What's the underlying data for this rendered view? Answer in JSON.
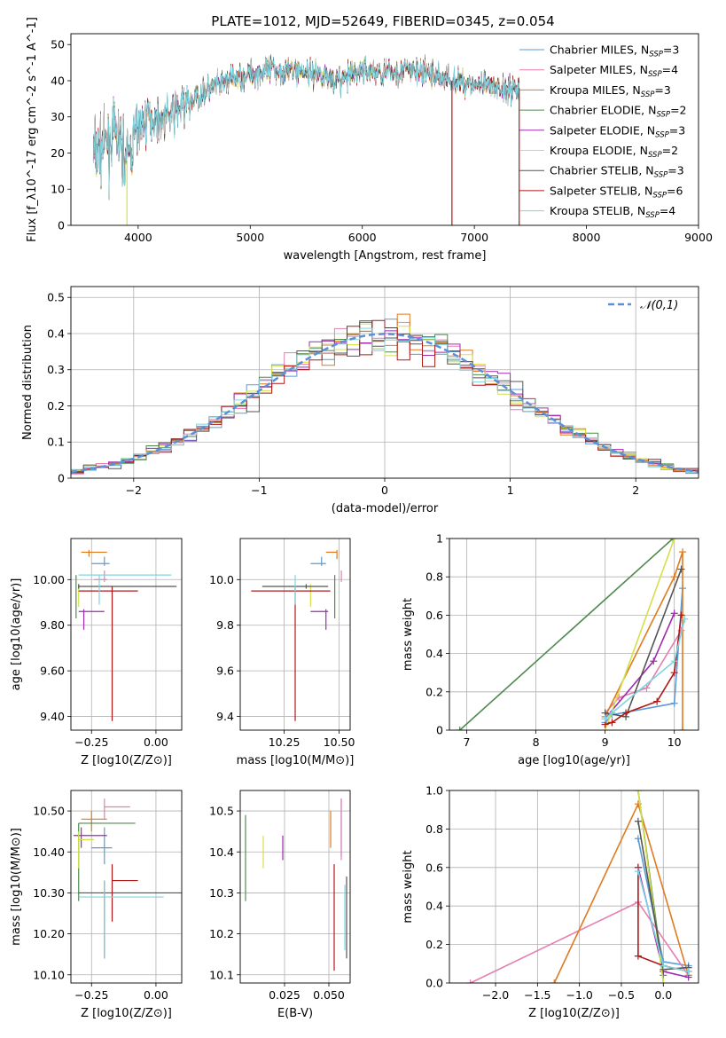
{
  "figure": {
    "title": "PLATE=1012, MJD=52649, FIBERID=0345, z=0.054"
  },
  "series_colors": [
    "#5b9bd5",
    "#e57fb0",
    "#e07a1f",
    "#4f8a4f",
    "#a02ab0",
    "#d4e04a",
    "#555555",
    "#b01818",
    "#7fd4e0"
  ],
  "chart_data": [
    {
      "id": "spectrum",
      "type": "line",
      "xlabel": "wavelength [Angstrom, rest frame]",
      "ylabel": "Flux [f_λ10^-17 erg cm^-2 s^-1 A^-1]",
      "xlim": [
        3400,
        9000
      ],
      "ylim": [
        0,
        53
      ],
      "xticks": [
        4000,
        5000,
        6000,
        7000,
        8000,
        9000
      ],
      "yticks": [
        0,
        10,
        20,
        30,
        40,
        50
      ],
      "legend_position": "right",
      "legend": [
        {
          "model": "Chabrier MILES",
          "nssp": "3"
        },
        {
          "model": "Salpeter MILES",
          "nssp": "4"
        },
        {
          "model": "Kroupa MILES",
          "nssp": "3"
        },
        {
          "model": "Chabrier ELODIE",
          "nssp": "2"
        },
        {
          "model": "Salpeter ELODIE",
          "nssp": "3"
        },
        {
          "model": "Kroupa ELODIE",
          "nssp": "2"
        },
        {
          "model": "Chabrier STELIB",
          "nssp": "3"
        },
        {
          "model": "Salpeter STELIB",
          "nssp": "6"
        },
        {
          "model": "Kroupa STELIB",
          "nssp": "4"
        }
      ],
      "x": [
        3600,
        3700,
        3800,
        3900,
        4000,
        4100,
        4200,
        4300,
        4400,
        4600,
        4800,
        5000,
        5200,
        5400,
        5600,
        5800,
        6000,
        6200,
        6400,
        6600,
        6800,
        7000,
        7200,
        7400
      ],
      "y": [
        20,
        22,
        25,
        18,
        27,
        30,
        29,
        31,
        33,
        37,
        40,
        42,
        43,
        43,
        42,
        40,
        43,
        42,
        43,
        42,
        40,
        39,
        38,
        38
      ],
      "glitches": [
        {
          "x": 3900,
          "y": 0
        },
        {
          "x": 6800,
          "y": 0
        },
        {
          "x": 7400,
          "y": 0
        }
      ]
    },
    {
      "id": "residuals",
      "type": "histogram",
      "xlabel": "(data-model)/error",
      "ylabel": "Normed distribution",
      "xlim": [
        -2.5,
        2.5
      ],
      "ylim": [
        0,
        0.53
      ],
      "xticks": [
        -2,
        -1,
        0,
        1,
        2
      ],
      "yticks": [
        0,
        0.1,
        0.2,
        0.3,
        0.4,
        0.5
      ],
      "legend_position": "top-right",
      "legend": [
        "𝒩(0,1)"
      ],
      "bin_width": 0.1,
      "reference_curve": "normal(0,1)"
    },
    {
      "id": "age_vs_z",
      "type": "scatter",
      "xlabel": "Z [log10(Z/Z⊙)]",
      "ylabel": "age  [log10(age/yr)]",
      "xlim": [
        -0.33,
        0.1
      ],
      "ylim": [
        9.34,
        10.18
      ],
      "xticks": [
        -0.25,
        0.0
      ],
      "yticks": [
        9.4,
        9.6,
        9.8,
        10.0
      ],
      "points": [
        {
          "x": -0.2,
          "y": 10.07,
          "xerr": [
            0.05,
            0.02
          ],
          "yerr": [
            0.01,
            0.03
          ]
        },
        {
          "x": -0.2,
          "y": 10.0,
          "xerr": [
            0.04,
            0.01
          ],
          "yerr": [
            0.01,
            0.04
          ]
        },
        {
          "x": -0.26,
          "y": 10.12,
          "xerr": [
            0.03,
            0.07
          ],
          "yerr": [
            0.02,
            0.01
          ]
        },
        {
          "x": -0.31,
          "y": 9.97,
          "xerr": [
            0.0,
            0.0
          ],
          "yerr": [
            0.14,
            0.05
          ]
        },
        {
          "x": -0.28,
          "y": 9.86,
          "xerr": [
            0.02,
            0.08
          ],
          "yerr": [
            0.08,
            0.01
          ]
        },
        {
          "x": -0.3,
          "y": 9.95,
          "xerr": [
            0.0,
            0.0
          ],
          "yerr": [
            0.07,
            0.03
          ]
        },
        {
          "x": -0.3,
          "y": 9.97,
          "xerr": [
            0.0,
            0.38
          ],
          "yerr": [
            0.01,
            0.01
          ]
        },
        {
          "x": -0.17,
          "y": 9.95,
          "xerr": [
            0.13,
            0.1
          ],
          "yerr": [
            0.57,
            0.02
          ]
        },
        {
          "x": -0.22,
          "y": 10.02,
          "xerr": [
            0.08,
            0.28
          ],
          "yerr": [
            0.13,
            0.0
          ]
        }
      ]
    },
    {
      "id": "age_vs_mass",
      "type": "scatter",
      "xlabel": "mass [log10(M/M⊙)]",
      "ylabel": "",
      "xlim": [
        10.05,
        10.55
      ],
      "ylim": [
        9.34,
        10.18
      ],
      "xticks": [
        10.25,
        10.5
      ],
      "yticks": [
        9.4,
        9.6,
        9.8,
        10.0
      ],
      "points": [
        {
          "x": 10.42,
          "y": 10.07,
          "xerr": [
            0.05,
            0.02
          ],
          "yerr": [
            0.01,
            0.03
          ]
        },
        {
          "x": 10.51,
          "y": 10.0,
          "xerr": [
            0.0,
            0.0
          ],
          "yerr": [
            0.01,
            0.04
          ]
        },
        {
          "x": 10.49,
          "y": 10.12,
          "xerr": [
            0.05,
            0.0
          ],
          "yerr": [
            0.03,
            0.01
          ]
        },
        {
          "x": 10.48,
          "y": 9.97,
          "xerr": [
            0.0,
            0.0
          ],
          "yerr": [
            0.14,
            0.05
          ]
        },
        {
          "x": 10.44,
          "y": 9.86,
          "xerr": [
            0.07,
            0.01
          ],
          "yerr": [
            0.08,
            0.01
          ]
        },
        {
          "x": 10.37,
          "y": 9.95,
          "xerr": [
            0.0,
            0.0
          ],
          "yerr": [
            0.07,
            0.03
          ]
        },
        {
          "x": 10.35,
          "y": 9.97,
          "xerr": [
            0.2,
            0.1
          ],
          "yerr": [
            0.01,
            0.01
          ]
        },
        {
          "x": 10.3,
          "y": 9.95,
          "xerr": [
            0.2,
            0.16
          ],
          "yerr": [
            0.57,
            0.02
          ]
        },
        {
          "x": 10.3,
          "y": 10.02,
          "xerr": [
            0.0,
            0.0
          ],
          "yerr": [
            0.13,
            0.0
          ]
        }
      ]
    },
    {
      "id": "weight_vs_age",
      "type": "line",
      "xlabel": "age  [log10(age/yr)]",
      "ylabel": "mass weight",
      "xlim": [
        6.75,
        10.35
      ],
      "ylim": [
        0,
        1
      ],
      "xticks": [
        7,
        8,
        9,
        10
      ],
      "yticks": [
        0,
        0.2,
        0.4,
        0.6,
        0.8,
        1.0
      ],
      "series": [
        {
          "x": [
            9.0,
            9.1,
            10.0,
            10.12
          ],
          "y": [
            0.04,
            0.08,
            0.14,
            0.74
          ]
        },
        {
          "x": [
            9.0,
            9.2,
            9.6,
            10.1
          ],
          "y": [
            0.09,
            0.17,
            0.22,
            0.52
          ]
        },
        {
          "x": [
            9.0,
            10.0,
            10.12,
            10.12
          ],
          "y": [
            0.07,
            0.8,
            0.93,
            0.0
          ]
        },
        {
          "x": [
            6.9,
            9.98
          ],
          "y": [
            0.0,
            1.0
          ]
        },
        {
          "x": [
            9.0,
            9.7,
            10.0
          ],
          "y": [
            0.06,
            0.36,
            0.61
          ]
        },
        {
          "x": [
            9.0,
            10.0
          ],
          "y": [
            0.0,
            1.0
          ]
        },
        {
          "x": [
            9.0,
            9.3,
            10.1
          ],
          "y": [
            0.09,
            0.07,
            0.84
          ]
        },
        {
          "x": [
            9.0,
            9.1,
            9.3,
            9.75,
            10.0,
            10.1
          ],
          "y": [
            0.03,
            0.04,
            0.09,
            0.15,
            0.3,
            0.6
          ]
        },
        {
          "x": [
            9.0,
            9.1,
            10.0,
            10.15
          ],
          "y": [
            0.06,
            0.09,
            0.36,
            0.58
          ]
        }
      ]
    },
    {
      "id": "mass_vs_z",
      "type": "scatter",
      "xlabel": "Z [log10(Z/Z⊙)]",
      "ylabel": "mass [log10(M/M⊙)]",
      "xlim": [
        -0.33,
        0.1
      ],
      "ylim": [
        10.08,
        10.55
      ],
      "xticks": [
        -0.25,
        0.0
      ],
      "yticks": [
        10.1,
        10.2,
        10.3,
        10.4,
        10.5
      ],
      "points": [
        {
          "x": -0.2,
          "y": 10.41,
          "xerr": [
            0.05,
            0.03
          ],
          "yerr": [
            0.04,
            0.05
          ]
        },
        {
          "x": -0.2,
          "y": 10.51,
          "xerr": [
            0.0,
            0.1
          ],
          "yerr": [
            0.03,
            0.02
          ]
        },
        {
          "x": -0.25,
          "y": 10.48,
          "xerr": [
            0.04,
            0.06
          ],
          "yerr": [
            0.03,
            0.02
          ]
        },
        {
          "x": -0.3,
          "y": 10.47,
          "xerr": [
            0.0,
            0.22
          ],
          "yerr": [
            0.19,
            0.0
          ]
        },
        {
          "x": -0.29,
          "y": 10.44,
          "xerr": [
            0.03,
            0.1
          ],
          "yerr": [
            0.03,
            0.02
          ]
        },
        {
          "x": -0.3,
          "y": 10.43,
          "xerr": [
            0.0,
            0.06
          ],
          "yerr": [
            0.07,
            0.02
          ]
        },
        {
          "x": -0.2,
          "y": 10.3,
          "xerr": [
            0.1,
            0.3
          ],
          "yerr": [
            0.16,
            0.03
          ]
        },
        {
          "x": -0.17,
          "y": 10.33,
          "xerr": [
            0.0,
            0.1
          ],
          "yerr": [
            0.1,
            0.04
          ]
        },
        {
          "x": -0.2,
          "y": 10.29,
          "xerr": [
            0.1,
            0.23
          ],
          "yerr": [
            0.15,
            0.04
          ]
        }
      ]
    },
    {
      "id": "mass_vs_ebv",
      "type": "scatter",
      "xlabel": "E(B-V)",
      "ylabel": "",
      "xlim": [
        0.0,
        0.062
      ],
      "ylim": [
        10.08,
        10.55
      ],
      "xticks": [
        0.025,
        0.05
      ],
      "yticks": [
        10.1,
        10.2,
        10.3,
        10.4,
        10.5
      ],
      "points": [
        {
          "x": 0.057,
          "y": 10.44,
          "xerr": [
            0.0,
            0.0
          ],
          "yerr": [
            0.05,
            0.09
          ]
        },
        {
          "x": 0.057,
          "y": 10.48,
          "xerr": [
            0.0,
            0.0
          ],
          "yerr": [
            0.1,
            0.05
          ]
        },
        {
          "x": 0.051,
          "y": 10.47,
          "xerr": [
            0.0,
            0.0
          ],
          "yerr": [
            0.06,
            0.03
          ]
        },
        {
          "x": 0.003,
          "y": 10.4,
          "xerr": [
            0.0,
            0.0
          ],
          "yerr": [
            0.12,
            0.09
          ]
        },
        {
          "x": 0.024,
          "y": 10.4,
          "xerr": [
            0.0,
            0.0
          ],
          "yerr": [
            0.02,
            0.04
          ]
        },
        {
          "x": 0.013,
          "y": 10.42,
          "xerr": [
            0.0,
            0.0
          ],
          "yerr": [
            0.06,
            0.02
          ]
        },
        {
          "x": 0.06,
          "y": 10.24,
          "xerr": [
            0.0,
            0.0
          ],
          "yerr": [
            0.1,
            0.1
          ]
        },
        {
          "x": 0.053,
          "y": 10.25,
          "xerr": [
            0.0,
            0.0
          ],
          "yerr": [
            0.14,
            0.12
          ]
        },
        {
          "x": 0.059,
          "y": 10.26,
          "xerr": [
            0.0,
            0.0
          ],
          "yerr": [
            0.1,
            0.06
          ]
        }
      ]
    },
    {
      "id": "weight_vs_z",
      "type": "line",
      "xlabel": "Z [log10(Z/Z⊙)]",
      "ylabel": "mass weight",
      "xlim": [
        -2.55,
        0.42
      ],
      "ylim": [
        0,
        1
      ],
      "xticks": [
        -2.0,
        -1.5,
        -1.0,
        -0.5,
        0.0
      ],
      "yticks": [
        0,
        0.2,
        0.4,
        0.6,
        0.8,
        1.0
      ],
      "series": [
        {
          "x": [
            -0.3,
            0.0,
            0.3
          ],
          "y": [
            0.75,
            0.11,
            0.09
          ]
        },
        {
          "x": [
            -2.3,
            -0.3,
            0.3
          ],
          "y": [
            0.0,
            0.42,
            0.04
          ]
        },
        {
          "x": [
            -1.3,
            -0.3,
            0.3
          ],
          "y": [
            0.0,
            0.93,
            0.04
          ]
        },
        {
          "x": [
            -0.3,
            0.0
          ],
          "y": [
            1.0,
            0.04
          ]
        },
        {
          "x": [
            -0.3,
            0.0,
            0.3
          ],
          "y": [
            0.6,
            0.06,
            0.03
          ]
        },
        {
          "x": [
            -0.3,
            0.0
          ],
          "y": [
            1.0,
            0.0
          ]
        },
        {
          "x": [
            -0.3,
            0.0,
            0.3
          ],
          "y": [
            0.84,
            0.07,
            0.08
          ]
        },
        {
          "x": [
            -0.3,
            -0.3,
            0.0,
            0.3
          ],
          "y": [
            0.6,
            0.14,
            0.09,
            0.06
          ]
        },
        {
          "x": [
            -0.3,
            0.0,
            0.3
          ],
          "y": [
            0.58,
            0.09,
            0.06
          ]
        }
      ]
    }
  ]
}
